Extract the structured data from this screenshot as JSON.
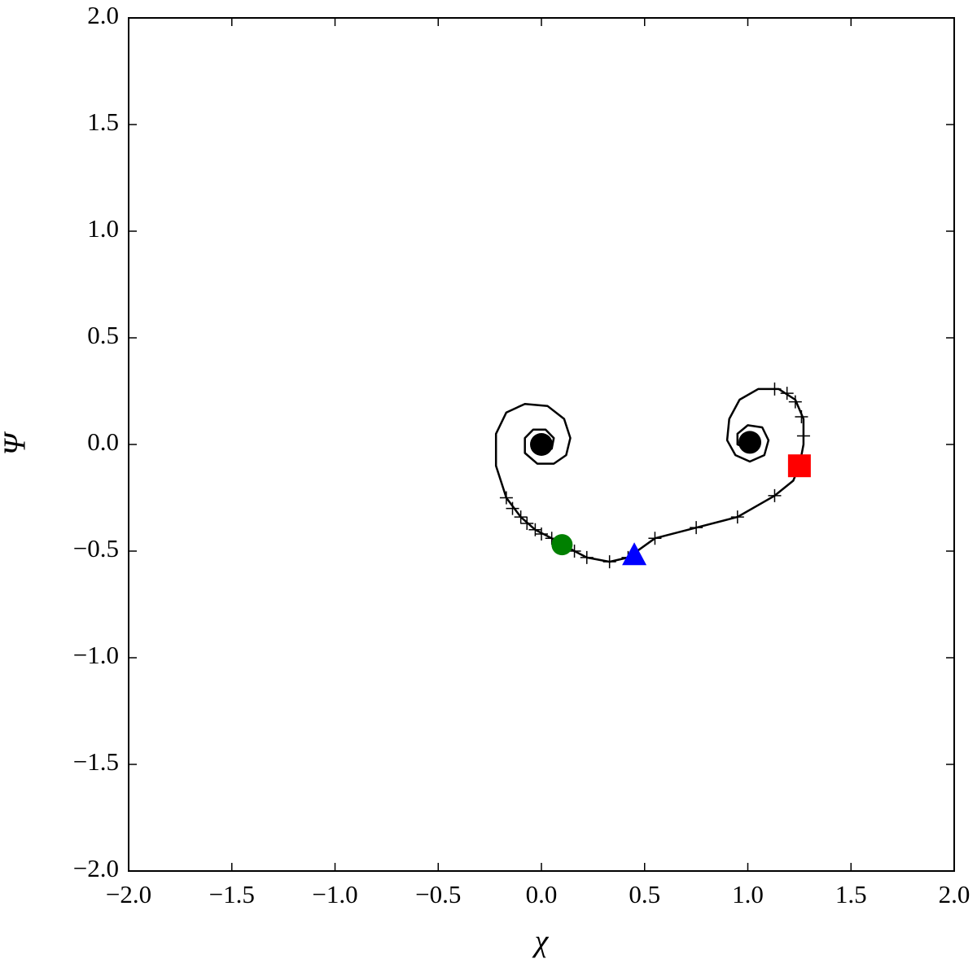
{
  "chart_data": {
    "type": "scatter",
    "xlabel": "χ",
    "ylabel": "Ψ",
    "xlim": [
      -2.0,
      2.0
    ],
    "ylim": [
      -2.0,
      2.0
    ],
    "xticks": [
      {
        "value": -2.0,
        "label": "−2.0"
      },
      {
        "value": -1.5,
        "label": "−1.5"
      },
      {
        "value": -1.0,
        "label": "−1.0"
      },
      {
        "value": -0.5,
        "label": "−0.5"
      },
      {
        "value": 0.0,
        "label": "0.0"
      },
      {
        "value": 0.5,
        "label": "0.5"
      },
      {
        "value": 1.0,
        "label": "1.0"
      },
      {
        "value": 1.5,
        "label": "1.5"
      },
      {
        "value": 2.0,
        "label": "2.0"
      }
    ],
    "yticks": [
      {
        "value": -2.0,
        "label": "−2.0"
      },
      {
        "value": -1.5,
        "label": "−1.5"
      },
      {
        "value": -1.0,
        "label": "−1.0"
      },
      {
        "value": -0.5,
        "label": "−0.5"
      },
      {
        "value": 0.0,
        "label": "0.0"
      },
      {
        "value": 0.5,
        "label": "0.5"
      },
      {
        "value": 1.0,
        "label": "1.0"
      },
      {
        "value": 1.5,
        "label": "1.5"
      },
      {
        "value": 2.0,
        "label": "2.0"
      }
    ],
    "series": [
      {
        "marker": "line",
        "color": "#000000",
        "x": [
          0,
          0.05,
          0.06,
          0.02,
          -0.04,
          -0.08,
          -0.08,
          -0.02,
          0.06,
          0.12,
          0.14,
          0.11,
          0.03,
          -0.08,
          -0.17,
          -0.22,
          -0.22,
          -0.17,
          -0.1,
          -0.03,
          0.05,
          0.16,
          0.22,
          0.33,
          0.42,
          0.55,
          0.75,
          0.95,
          1.13,
          1.22,
          1.25,
          1.27,
          1.27,
          1.23,
          1.15,
          1.05,
          0.96,
          0.91,
          0.9,
          0.94,
          1.01,
          1.08,
          1.1,
          1.07,
          1.0,
          0.95,
          0.95,
          1.0,
          1.04,
          1.02
        ],
        "y": [
          -0.04,
          -0.02,
          0.03,
          0.07,
          0.07,
          0.03,
          -0.04,
          -0.09,
          -0.09,
          -0.05,
          0.03,
          0.12,
          0.18,
          0.19,
          0.15,
          0.05,
          -0.1,
          -0.25,
          -0.34,
          -0.4,
          -0.44,
          -0.5,
          -0.53,
          -0.55,
          -0.53,
          -0.44,
          -0.39,
          -0.34,
          -0.24,
          -0.17,
          -0.1,
          0.0,
          0.12,
          0.21,
          0.26,
          0.26,
          0.21,
          0.12,
          0.02,
          -0.05,
          -0.08,
          -0.05,
          0.02,
          0.08,
          0.09,
          0.05,
          0.0,
          -0.02,
          0.01,
          0.03
        ]
      },
      {
        "marker": "plus",
        "color": "#000000",
        "x": [
          -0.17,
          -0.14,
          -0.1,
          -0.07,
          -0.03,
          0.0,
          0.05,
          0.16,
          0.22,
          0.33,
          0.42,
          0.55,
          0.75,
          0.95,
          1.13,
          1.27,
          1.26,
          1.23,
          1.19,
          1.13
        ],
        "y": [
          -0.25,
          -0.3,
          -0.34,
          -0.37,
          -0.4,
          -0.42,
          -0.44,
          -0.5,
          -0.53,
          -0.55,
          -0.53,
          -0.44,
          -0.39,
          -0.34,
          -0.24,
          0.04,
          0.13,
          0.2,
          0.24,
          0.26
        ]
      },
      {
        "marker": "dot",
        "color": "#000000",
        "x": [
          0.0,
          1.01
        ],
        "y": [
          0.0,
          0.01
        ]
      },
      {
        "marker": "circle",
        "color": "#008000",
        "x": [
          0.1
        ],
        "y": [
          -0.47
        ]
      },
      {
        "marker": "triangle",
        "color": "#0000ff",
        "x": [
          0.45
        ],
        "y": [
          -0.52
        ]
      },
      {
        "marker": "square",
        "color": "#ff0000",
        "x": [
          1.25
        ],
        "y": [
          -0.1
        ]
      }
    ]
  }
}
